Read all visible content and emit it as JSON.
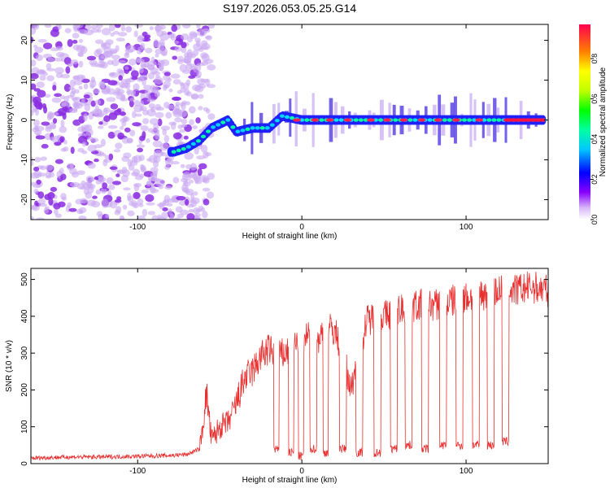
{
  "title": "S197.2026.053.05.25.G14",
  "chart_data": [
    {
      "type": "heatmap",
      "panel": "spectrogram",
      "xlabel": "Height of straight line (km)",
      "ylabel": "Frequency (Hz)",
      "xlim": [
        -165,
        150
      ],
      "ylim": [
        -25,
        24
      ],
      "xticks": [
        -100,
        0,
        100
      ],
      "yticks": [
        -20,
        -10,
        0,
        10,
        20
      ],
      "colorbar": {
        "label": "Normalized spectral amplitude",
        "range": [
          0.0,
          0.97
        ],
        "ticks": [
          0.0,
          0.2,
          0.4,
          0.6,
          0.8
        ],
        "tick_labels": [
          "0.0",
          "0.2",
          "0.4",
          "0.6",
          "0.8"
        ]
      },
      "ridge": [
        {
          "x": -78,
          "f": -8
        },
        {
          "x": -70,
          "f": -7
        },
        {
          "x": -62,
          "f": -5
        },
        {
          "x": -55,
          "f": -2
        },
        {
          "x": -45,
          "f": 0
        },
        {
          "x": -40,
          "f": -3
        },
        {
          "x": -30,
          "f": -2
        },
        {
          "x": -20,
          "f": -2
        },
        {
          "x": -12,
          "f": 1
        },
        {
          "x": 0,
          "f": 0
        },
        {
          "x": 150,
          "f": 0
        }
      ],
      "noise_region_x": [
        -165,
        -55
      ]
    },
    {
      "type": "line",
      "panel": "snr",
      "xlabel": "Height of straight line (km)",
      "ylabel": "SNR (10 * v/v)",
      "xlim": [
        -165,
        150
      ],
      "ylim": [
        0,
        530
      ],
      "xticks": [
        -100,
        0,
        100
      ],
      "yticks": [
        0,
        100,
        200,
        300,
        400,
        500
      ],
      "series": [
        {
          "name": "SNR",
          "color": "#e83030",
          "x": [
            -165,
            -140,
            -120,
            -100,
            -80,
            -70,
            -62,
            -58,
            -55,
            -50,
            -45,
            -40,
            -35,
            -30,
            -25,
            -20,
            -15,
            -10,
            -5,
            0,
            5,
            10,
            15,
            20,
            25,
            30,
            35,
            40,
            45,
            50,
            55,
            60,
            70,
            80,
            90,
            100,
            110,
            120,
            130,
            140,
            150
          ],
          "values": [
            15,
            18,
            18,
            20,
            22,
            25,
            40,
            190,
            60,
            100,
            110,
            160,
            230,
            250,
            290,
            310,
            290,
            300,
            320,
            330,
            350,
            340,
            370,
            360,
            300,
            200,
            320,
            390,
            400,
            400,
            410,
            420,
            430,
            430,
            440,
            450,
            460,
            470,
            470,
            480,
            470
          ]
        }
      ],
      "dropouts": [
        {
          "x0": -17,
          "x1": -14,
          "level": 40
        },
        {
          "x0": -8,
          "x1": -5,
          "level": 30
        },
        {
          "x0": -2,
          "x1": 1,
          "level": 20
        },
        {
          "x0": 5,
          "x1": 9,
          "level": 40
        },
        {
          "x0": 13,
          "x1": 16,
          "level": 30
        },
        {
          "x0": 23,
          "x1": 27,
          "level": 40
        },
        {
          "x0": 33,
          "x1": 37,
          "level": 30
        },
        {
          "x0": 44,
          "x1": 48,
          "level": 30
        },
        {
          "x0": 54,
          "x1": 58,
          "level": 40
        },
        {
          "x0": 63,
          "x1": 67,
          "level": 50
        },
        {
          "x0": 73,
          "x1": 77,
          "level": 40
        },
        {
          "x0": 84,
          "x1": 88,
          "level": 50
        },
        {
          "x0": 94,
          "x1": 98,
          "level": 50
        },
        {
          "x0": 104,
          "x1": 108,
          "level": 50
        },
        {
          "x0": 113,
          "x1": 117,
          "level": 50
        },
        {
          "x0": 122,
          "x1": 126,
          "level": 60
        }
      ]
    }
  ]
}
